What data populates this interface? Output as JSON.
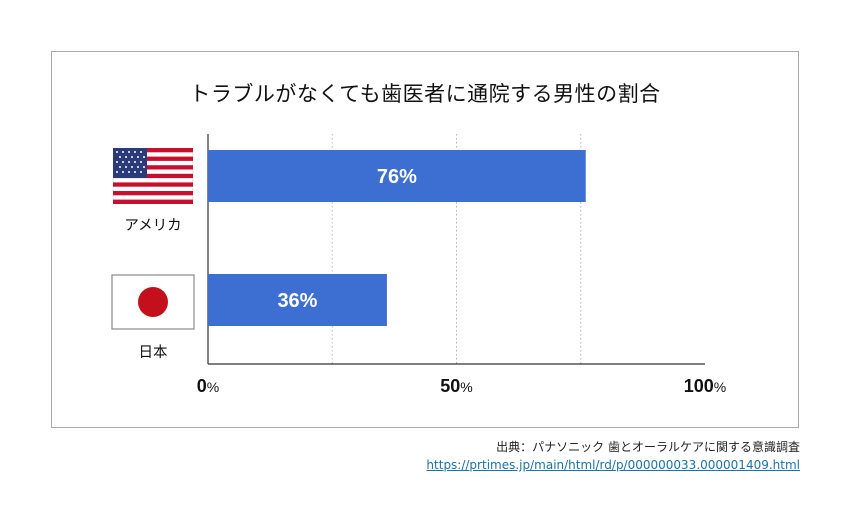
{
  "chart_data": {
    "type": "bar",
    "orientation": "horizontal",
    "title": "トラブルがなくても歯医者に通院する男性の割合",
    "categories": [
      "アメリカ",
      "日本"
    ],
    "values": [
      76,
      36
    ],
    "data_labels": [
      "76%",
      "36%"
    ],
    "xlim": [
      0,
      100
    ],
    "x_tick_labels": [
      {
        "value": 0,
        "num": "0",
        "unit": "%"
      },
      {
        "value": 50,
        "num": "50",
        "unit": "%"
      },
      {
        "value": 100,
        "num": "100",
        "unit": "%"
      }
    ],
    "grid": true,
    "bar_color": "#3c6fd1",
    "flags": [
      "us-flag-icon",
      "japan-flag-icon"
    ]
  },
  "source": {
    "text": "出典：パナソニック 歯とオーラルケアに関する意識調査",
    "link": "https://prtimes.jp/main/html/rd/p/000000033.000001409.html"
  }
}
